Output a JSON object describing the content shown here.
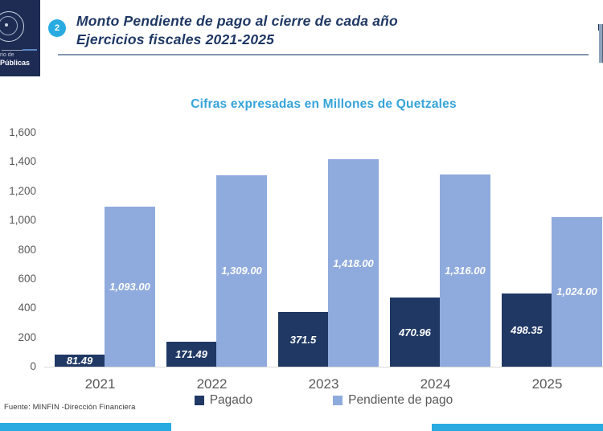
{
  "header": {
    "badge": "2",
    "title_line1": "Monto Pendiente de pago al cierre de cada año",
    "title_line2": "Ejercicios fiscales 2021-2025",
    "logo": {
      "line1": "rio de",
      "line2": "Públicas"
    }
  },
  "chart_data": {
    "type": "bar",
    "title": "Cifras expresadas en Millones de Quetzales",
    "categories": [
      "2021",
      "2022",
      "2023",
      "2024",
      "2025"
    ],
    "series": [
      {
        "name": "Pagado",
        "color": "#1F3864",
        "values": [
          81.49,
          171.49,
          371.5,
          470.96,
          498.35
        ],
        "labels": [
          "81.49",
          "171.49",
          "371.5",
          "470.96",
          "498.35"
        ]
      },
      {
        "name": "Pendiente de pago",
        "color": "#8FAADC",
        "values": [
          1093,
          1309,
          1418,
          1316,
          1024
        ],
        "labels": [
          "1,093.00",
          "1,309.00",
          "1,418.00",
          "1,316.00",
          "1,024.00"
        ]
      }
    ],
    "ylim": [
      0,
      1600
    ],
    "ytick_step": 200,
    "yticks": [
      "0",
      "200",
      "400",
      "600",
      "800",
      "1,000",
      "1,200",
      "1,400",
      "1,600"
    ],
    "grid": false,
    "legend_position": "bottom",
    "data_labels": "inside-white-italic"
  },
  "footer": {
    "source": "Fuente: MINFIN -Dirección Financiera"
  },
  "colors": {
    "accent_cyan": "#29ABE2",
    "title_navy": "#1F3864",
    "subtitle_blue": "#35A3DA",
    "axis_text": "#595959",
    "logo_navy": "#1E2C54",
    "baseline_gray": "#D9D9D9"
  }
}
